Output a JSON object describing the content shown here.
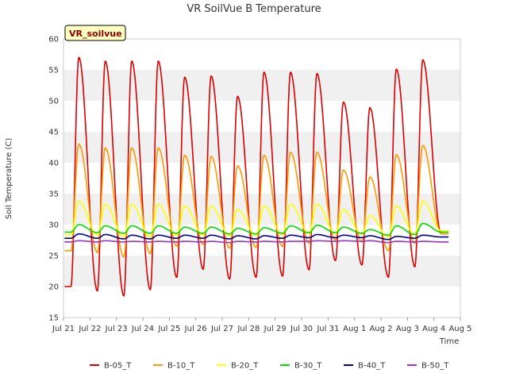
{
  "chart_data": {
    "type": "line",
    "title": "VR SoilVue B Temperature",
    "xlabel": "Time",
    "ylabel": "Soil Temperature (C)",
    "site_label": "VR_soilvue",
    "ylim": [
      15,
      60
    ],
    "yticks": [
      15,
      20,
      25,
      30,
      35,
      40,
      45,
      50,
      55,
      60
    ],
    "xticks": [
      "Jul 21",
      "Jul 22",
      "Jul 23",
      "Jul 24",
      "Jul 25",
      "Jul 26",
      "Jul 27",
      "Jul 28",
      "Jul 29",
      "Jul 30",
      "Jul 31",
      "Aug 1",
      "Aug 2",
      "Aug 3",
      "Aug 4",
      "Aug 5"
    ],
    "x_start": "Jul 21",
    "grid": "horizontal bands",
    "legend_position": "bottom",
    "series": [
      {
        "name": "B-05_T",
        "color": "#dd0000",
        "min_values": [
          20.0,
          19.3,
          18.5,
          19.5,
          21.5,
          22.8,
          21.2,
          21.5,
          21.7,
          22.7,
          24.2,
          23.5,
          21.5,
          23.2,
          28.5
        ],
        "max_values": [
          57.0,
          56.4,
          56.4,
          56.4,
          53.8,
          54.0,
          50.7,
          54.6,
          54.6,
          54.4,
          49.8,
          48.9,
          55.1,
          56.6
        ]
      },
      {
        "name": "B-10_T",
        "color": "#ff9900",
        "min_values": [
          25.8,
          25.5,
          24.8,
          25.3,
          26.5,
          26.8,
          26.2,
          26.3,
          26.5,
          27.0,
          27.5,
          27.2,
          25.8,
          27.0,
          28.5
        ],
        "max_values": [
          43.0,
          42.4,
          42.4,
          42.4,
          41.2,
          41.0,
          39.5,
          41.2,
          41.7,
          41.7,
          38.8,
          37.7,
          41.3,
          42.8
        ]
      },
      {
        "name": "B-20_T",
        "color": "#ffff00",
        "min_values": [
          28.3,
          28.3,
          28.0,
          28.0,
          28.3,
          28.3,
          28.2,
          28.3,
          28.4,
          28.6,
          28.6,
          28.5,
          28.0,
          28.4,
          29.0
        ],
        "max_values": [
          33.8,
          33.3,
          33.3,
          33.3,
          33.0,
          33.0,
          32.4,
          33.0,
          33.3,
          33.3,
          32.4,
          31.5,
          33.0,
          33.8
        ]
      },
      {
        "name": "B-30_T",
        "color": "#00dd00",
        "min_values": [
          28.8,
          28.7,
          28.6,
          28.6,
          28.6,
          28.6,
          28.5,
          28.5,
          28.6,
          28.7,
          28.7,
          28.6,
          28.3,
          28.4,
          28.8
        ],
        "max_values": [
          30.0,
          29.8,
          29.8,
          29.8,
          29.6,
          29.6,
          29.4,
          29.5,
          29.8,
          29.9,
          29.6,
          29.2,
          29.8,
          30.2
        ]
      },
      {
        "name": "B-40_T",
        "color": "#000099",
        "min_values": [
          27.8,
          27.8,
          27.7,
          27.7,
          27.8,
          27.8,
          27.7,
          27.7,
          27.8,
          27.9,
          27.9,
          27.9,
          27.6,
          27.8,
          28.0
        ],
        "max_values": [
          28.5,
          28.4,
          28.3,
          28.3,
          28.3,
          28.3,
          28.2,
          28.2,
          28.3,
          28.4,
          28.3,
          28.2,
          28.1,
          28.3
        ]
      },
      {
        "name": "B-50_T",
        "color": "#9933cc",
        "min_values": [
          27.2,
          27.2,
          27.2,
          27.2,
          27.2,
          27.2,
          27.1,
          27.2,
          27.2,
          27.3,
          27.3,
          27.3,
          27.1,
          27.2,
          27.2
        ],
        "max_values": [
          27.4,
          27.4,
          27.3,
          27.3,
          27.3,
          27.3,
          27.3,
          27.3,
          27.3,
          27.4,
          27.4,
          27.4,
          27.3,
          27.3
        ]
      }
    ]
  }
}
